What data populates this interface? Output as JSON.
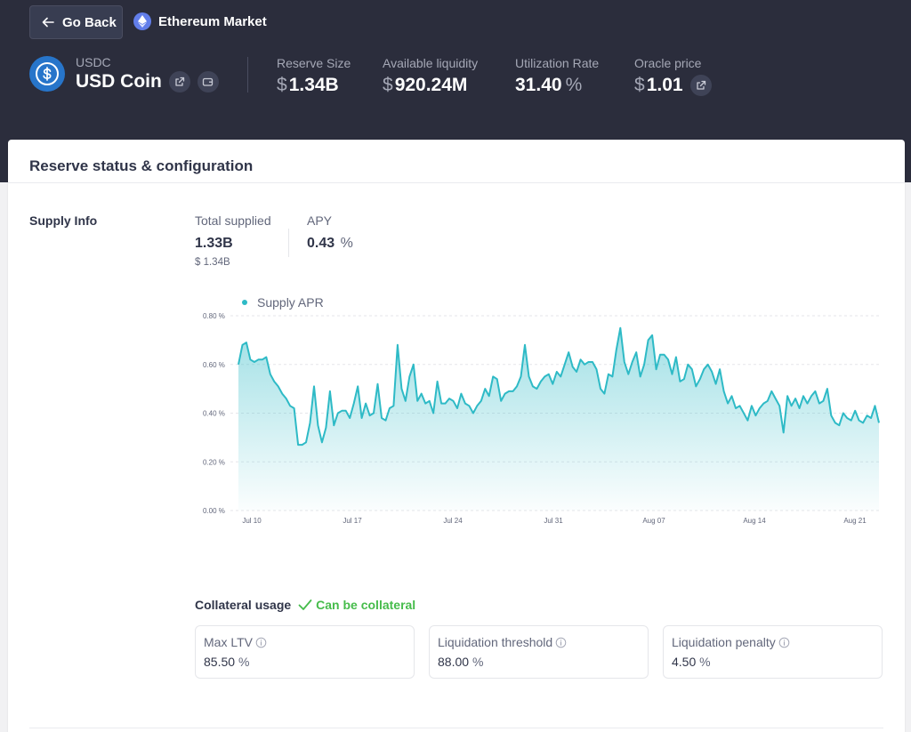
{
  "nav": {
    "back_label": "Go Back",
    "market_name": "Ethereum Market",
    "back_icon": "arrow-left-icon",
    "market_icon": "ethereum-icon"
  },
  "asset": {
    "symbol": "USDC",
    "name": "USD Coin"
  },
  "metrics": {
    "reserve_size": {
      "label": "Reserve Size",
      "prefix": "$",
      "value": "1.34B"
    },
    "available_liquidity": {
      "label": "Available liquidity",
      "prefix": "$",
      "value": "920.24M"
    },
    "utilization_rate": {
      "label": "Utilization Rate",
      "value": "31.40",
      "suffix": "%"
    },
    "oracle_price": {
      "label": "Oracle price",
      "prefix": "$",
      "value": "1.01"
    }
  },
  "card": {
    "title": "Reserve status & configuration"
  },
  "supply": {
    "section_label": "Supply Info",
    "total_label": "Total supplied",
    "total_value": "1.33B",
    "total_usd": "$ 1.34B",
    "apy_label": "APY",
    "apy_value": "0.43",
    "apy_suffix": "%"
  },
  "chart_data": {
    "type": "area",
    "legend": "Supply APR",
    "y_ticks": [
      "0.00 %",
      "0.20 %",
      "0.40 %",
      "0.60 %",
      "0.80 %"
    ],
    "ylim": [
      0,
      0.8
    ],
    "x_ticks": [
      "Jul 10",
      "Jul 17",
      "Jul 24",
      "Jul 31",
      "Aug 07",
      "Aug 14",
      "Aug 21"
    ],
    "color": "#2ebac6",
    "values": [
      0.6,
      0.68,
      0.69,
      0.62,
      0.61,
      0.62,
      0.62,
      0.63,
      0.56,
      0.53,
      0.51,
      0.48,
      0.46,
      0.43,
      0.42,
      0.27,
      0.27,
      0.28,
      0.36,
      0.51,
      0.35,
      0.28,
      0.34,
      0.49,
      0.35,
      0.4,
      0.41,
      0.41,
      0.38,
      0.44,
      0.51,
      0.38,
      0.44,
      0.39,
      0.4,
      0.52,
      0.38,
      0.37,
      0.42,
      0.43,
      0.68,
      0.5,
      0.45,
      0.55,
      0.6,
      0.45,
      0.48,
      0.44,
      0.45,
      0.4,
      0.53,
      0.44,
      0.44,
      0.46,
      0.45,
      0.42,
      0.48,
      0.44,
      0.43,
      0.4,
      0.43,
      0.45,
      0.5,
      0.47,
      0.55,
      0.54,
      0.45,
      0.48,
      0.49,
      0.49,
      0.51,
      0.55,
      0.68,
      0.55,
      0.51,
      0.5,
      0.53,
      0.55,
      0.56,
      0.52,
      0.57,
      0.55,
      0.6,
      0.65,
      0.59,
      0.57,
      0.62,
      0.6,
      0.61,
      0.61,
      0.58,
      0.5,
      0.48,
      0.56,
      0.55,
      0.66,
      0.75,
      0.61,
      0.56,
      0.61,
      0.65,
      0.55,
      0.6,
      0.7,
      0.72,
      0.58,
      0.64,
      0.64,
      0.62,
      0.56,
      0.63,
      0.53,
      0.54,
      0.6,
      0.58,
      0.51,
      0.54,
      0.58,
      0.6,
      0.57,
      0.52,
      0.58,
      0.49,
      0.44,
      0.47,
      0.42,
      0.43,
      0.4,
      0.37,
      0.43,
      0.39,
      0.42,
      0.44,
      0.45,
      0.49,
      0.46,
      0.43,
      0.32,
      0.47,
      0.43,
      0.46,
      0.42,
      0.47,
      0.44,
      0.47,
      0.49,
      0.44,
      0.45,
      0.5,
      0.39,
      0.36,
      0.35,
      0.4,
      0.38,
      0.37,
      0.41,
      0.37,
      0.36,
      0.39,
      0.38,
      0.43,
      0.36
    ]
  },
  "collateral": {
    "label": "Collateral usage",
    "status": "Can be collateral",
    "max_ltv": {
      "label": "Max LTV",
      "value": "85.50",
      "suffix": "%"
    },
    "liq_threshold": {
      "label": "Liquidation threshold",
      "value": "88.00",
      "suffix": "%"
    },
    "liq_penalty": {
      "label": "Liquidation penalty",
      "value": "4.50",
      "suffix": "%"
    }
  }
}
